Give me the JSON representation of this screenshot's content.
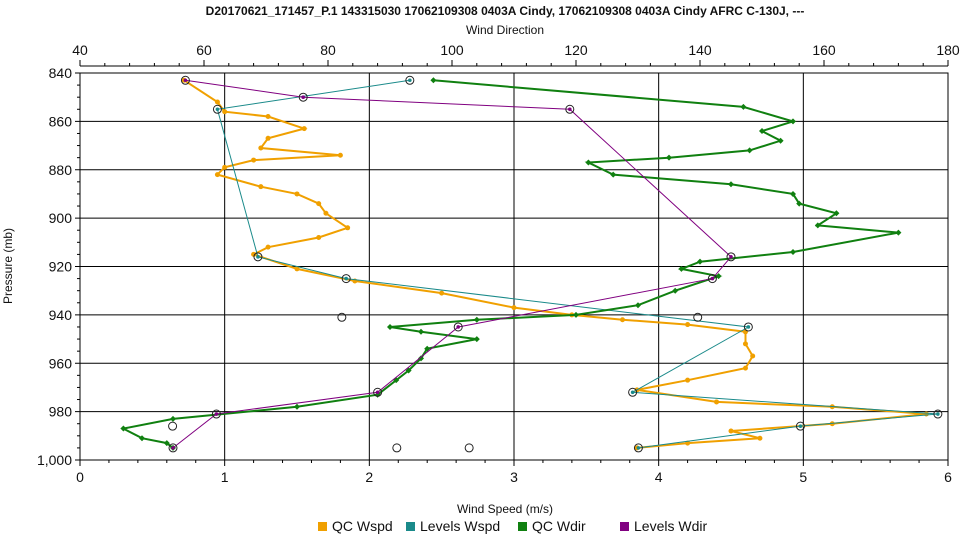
{
  "chart_data": {
    "type": "line",
    "title": "D20170621_171457_P.1 143315030 17062109308 0403A Cindy, 17062109308 0403A Cindy AFRC C-130J, ---",
    "xlabel_bottom": "Wind Speed (m/s)",
    "xlabel_top": "Wind Direction",
    "ylabel": "Pressure (mb)",
    "xlim_bottom": [
      0,
      6
    ],
    "xlim_top": [
      40,
      180
    ],
    "ylim": [
      840,
      1000
    ],
    "y_inverted": true,
    "grid": true,
    "legend_position": "bottom",
    "x_ticks_bottom": [
      "0",
      "1",
      "2",
      "3",
      "4",
      "5",
      "6"
    ],
    "x_ticks_top": [
      "40",
      "60",
      "80",
      "100",
      "120",
      "140",
      "160",
      "180"
    ],
    "y_ticks": [
      "840",
      "860",
      "880",
      "900",
      "920",
      "940",
      "960",
      "980",
      "1,000"
    ],
    "series": [
      {
        "name": "QC Wspd",
        "axis": "bottom",
        "color": "#f0a000",
        "marker": "small-dot",
        "points": [
          [
            0.72,
            843
          ],
          [
            0.95,
            852
          ],
          [
            1.0,
            856
          ],
          [
            1.3,
            858
          ],
          [
            1.55,
            863
          ],
          [
            1.3,
            867
          ],
          [
            1.25,
            871
          ],
          [
            1.8,
            874
          ],
          [
            1.2,
            876
          ],
          [
            1.0,
            879
          ],
          [
            0.95,
            882
          ],
          [
            1.25,
            887
          ],
          [
            1.5,
            890
          ],
          [
            1.65,
            894
          ],
          [
            1.7,
            898
          ],
          [
            1.85,
            904
          ],
          [
            1.65,
            908
          ],
          [
            1.3,
            912
          ],
          [
            1.2,
            915
          ],
          [
            1.5,
            921
          ],
          [
            1.9,
            926
          ],
          [
            2.5,
            931
          ],
          [
            3.0,
            937
          ],
          [
            3.4,
            940
          ],
          [
            3.75,
            942
          ],
          [
            4.2,
            944
          ],
          [
            4.6,
            947
          ],
          [
            4.6,
            952
          ],
          [
            4.65,
            957
          ],
          [
            4.6,
            962
          ],
          [
            4.2,
            967
          ],
          [
            3.85,
            971
          ],
          [
            4.4,
            976
          ],
          [
            5.2,
            978
          ],
          [
            5.85,
            981
          ],
          [
            5.2,
            985
          ],
          [
            4.5,
            988
          ],
          [
            4.7,
            991
          ],
          [
            4.2,
            993
          ],
          [
            3.85,
            995
          ]
        ]
      },
      {
        "name": "Levels Wspd",
        "axis": "bottom",
        "color": "#1a8a8a",
        "marker": "circle",
        "points": [
          [
            2.28,
            843
          ],
          [
            0.95,
            855
          ],
          [
            1.23,
            916
          ],
          [
            1.84,
            925
          ],
          [
            4.62,
            945
          ],
          [
            3.82,
            972
          ],
          [
            5.93,
            981
          ],
          [
            4.98,
            986
          ],
          [
            3.86,
            995
          ]
        ]
      },
      {
        "name": "QC Wdir",
        "axis": "top",
        "color": "#108010",
        "marker": "diamond",
        "points": [
          [
            97,
            843
          ],
          [
            147,
            854
          ],
          [
            155,
            860
          ],
          [
            150,
            864
          ],
          [
            153,
            868
          ],
          [
            148,
            872
          ],
          [
            135,
            875
          ],
          [
            122,
            877
          ],
          [
            126,
            882
          ],
          [
            145,
            886
          ],
          [
            155,
            890
          ],
          [
            156,
            894
          ],
          [
            162,
            898
          ],
          [
            159,
            903
          ],
          [
            172,
            906
          ],
          [
            155,
            914
          ],
          [
            140,
            918
          ],
          [
            137,
            921
          ],
          [
            143,
            924
          ],
          [
            136,
            930
          ],
          [
            130,
            936
          ],
          [
            120,
            940
          ],
          [
            104,
            942
          ],
          [
            90,
            945
          ],
          [
            95,
            947
          ],
          [
            104,
            950
          ],
          [
            96,
            954
          ],
          [
            95,
            958
          ],
          [
            93,
            963
          ],
          [
            91,
            967
          ],
          [
            88,
            973
          ],
          [
            75,
            978
          ],
          [
            55,
            983
          ],
          [
            47,
            987
          ],
          [
            50,
            991
          ],
          [
            54,
            993
          ],
          [
            55,
            995
          ]
        ]
      },
      {
        "name": "Levels Wdir",
        "axis": "top",
        "color": "#800080",
        "marker": "circle",
        "points": [
          [
            57,
            843
          ],
          [
            76,
            850
          ],
          [
            119,
            855
          ],
          [
            145,
            916
          ],
          [
            142,
            925
          ],
          [
            101,
            945
          ],
          [
            88,
            972
          ],
          [
            62,
            981
          ],
          [
            55,
            995
          ]
        ]
      }
    ],
    "stray_points": [
      {
        "x": 1.81,
        "y": 941
      },
      {
        "x": 0.64,
        "y": 986
      },
      {
        "x": 2.19,
        "y": 995
      },
      {
        "x": 2.69,
        "y": 995
      },
      {
        "x": 4.27,
        "y": 941
      }
    ]
  }
}
